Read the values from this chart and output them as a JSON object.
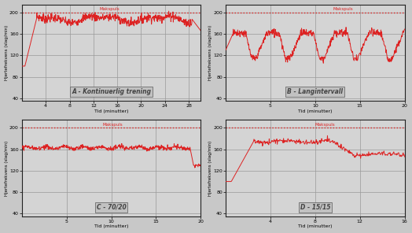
{
  "background_color": "#c8c8c8",
  "plot_bg_color": "#d4d4d4",
  "line_color": "#dd2222",
  "dotted_color": "#dd2222",
  "grid_color": "#999999",
  "max_pulse": 200,
  "subplots": [
    {
      "label": "A - Kontinuerlig trening",
      "xlabel": "Tid (minutter)",
      "ylabel": "Hjertefrekvens (slag/min)",
      "xlim": [
        0,
        30
      ],
      "ylim": [
        35,
        215
      ],
      "xticks": [
        4,
        8,
        12,
        16,
        20,
        24,
        28
      ],
      "yticks": [
        40,
        80,
        120,
        160,
        200
      ],
      "makspuls_x": 13
    },
    {
      "label": "B - Langintervall",
      "xlabel": "Tid (minutter)",
      "ylabel": "Hjertefrekvens (slag/min)",
      "xlim": [
        0,
        20
      ],
      "ylim": [
        35,
        215
      ],
      "xticks": [
        5,
        10,
        15,
        20
      ],
      "yticks": [
        40,
        80,
        120,
        160,
        200
      ],
      "makspuls_x": 12
    },
    {
      "label": "C - 70/20",
      "xlabel": "Tid (minutter)",
      "ylabel": "Hjertefrekvens (slag/min)",
      "xlim": [
        0,
        20
      ],
      "ylim": [
        35,
        215
      ],
      "xticks": [
        5,
        10,
        15,
        20
      ],
      "yticks": [
        40,
        80,
        120,
        160,
        200
      ],
      "makspuls_x": 9
    },
    {
      "label": "D - 15/15",
      "xlabel": "Tid (minutter)",
      "ylabel": "Hjertefrekvens (slag/min)",
      "xlim": [
        0,
        16
      ],
      "ylim": [
        35,
        215
      ],
      "xticks": [
        4,
        8,
        12,
        16
      ],
      "yticks": [
        40,
        80,
        120,
        160,
        200
      ],
      "makspuls_x": 8
    }
  ]
}
